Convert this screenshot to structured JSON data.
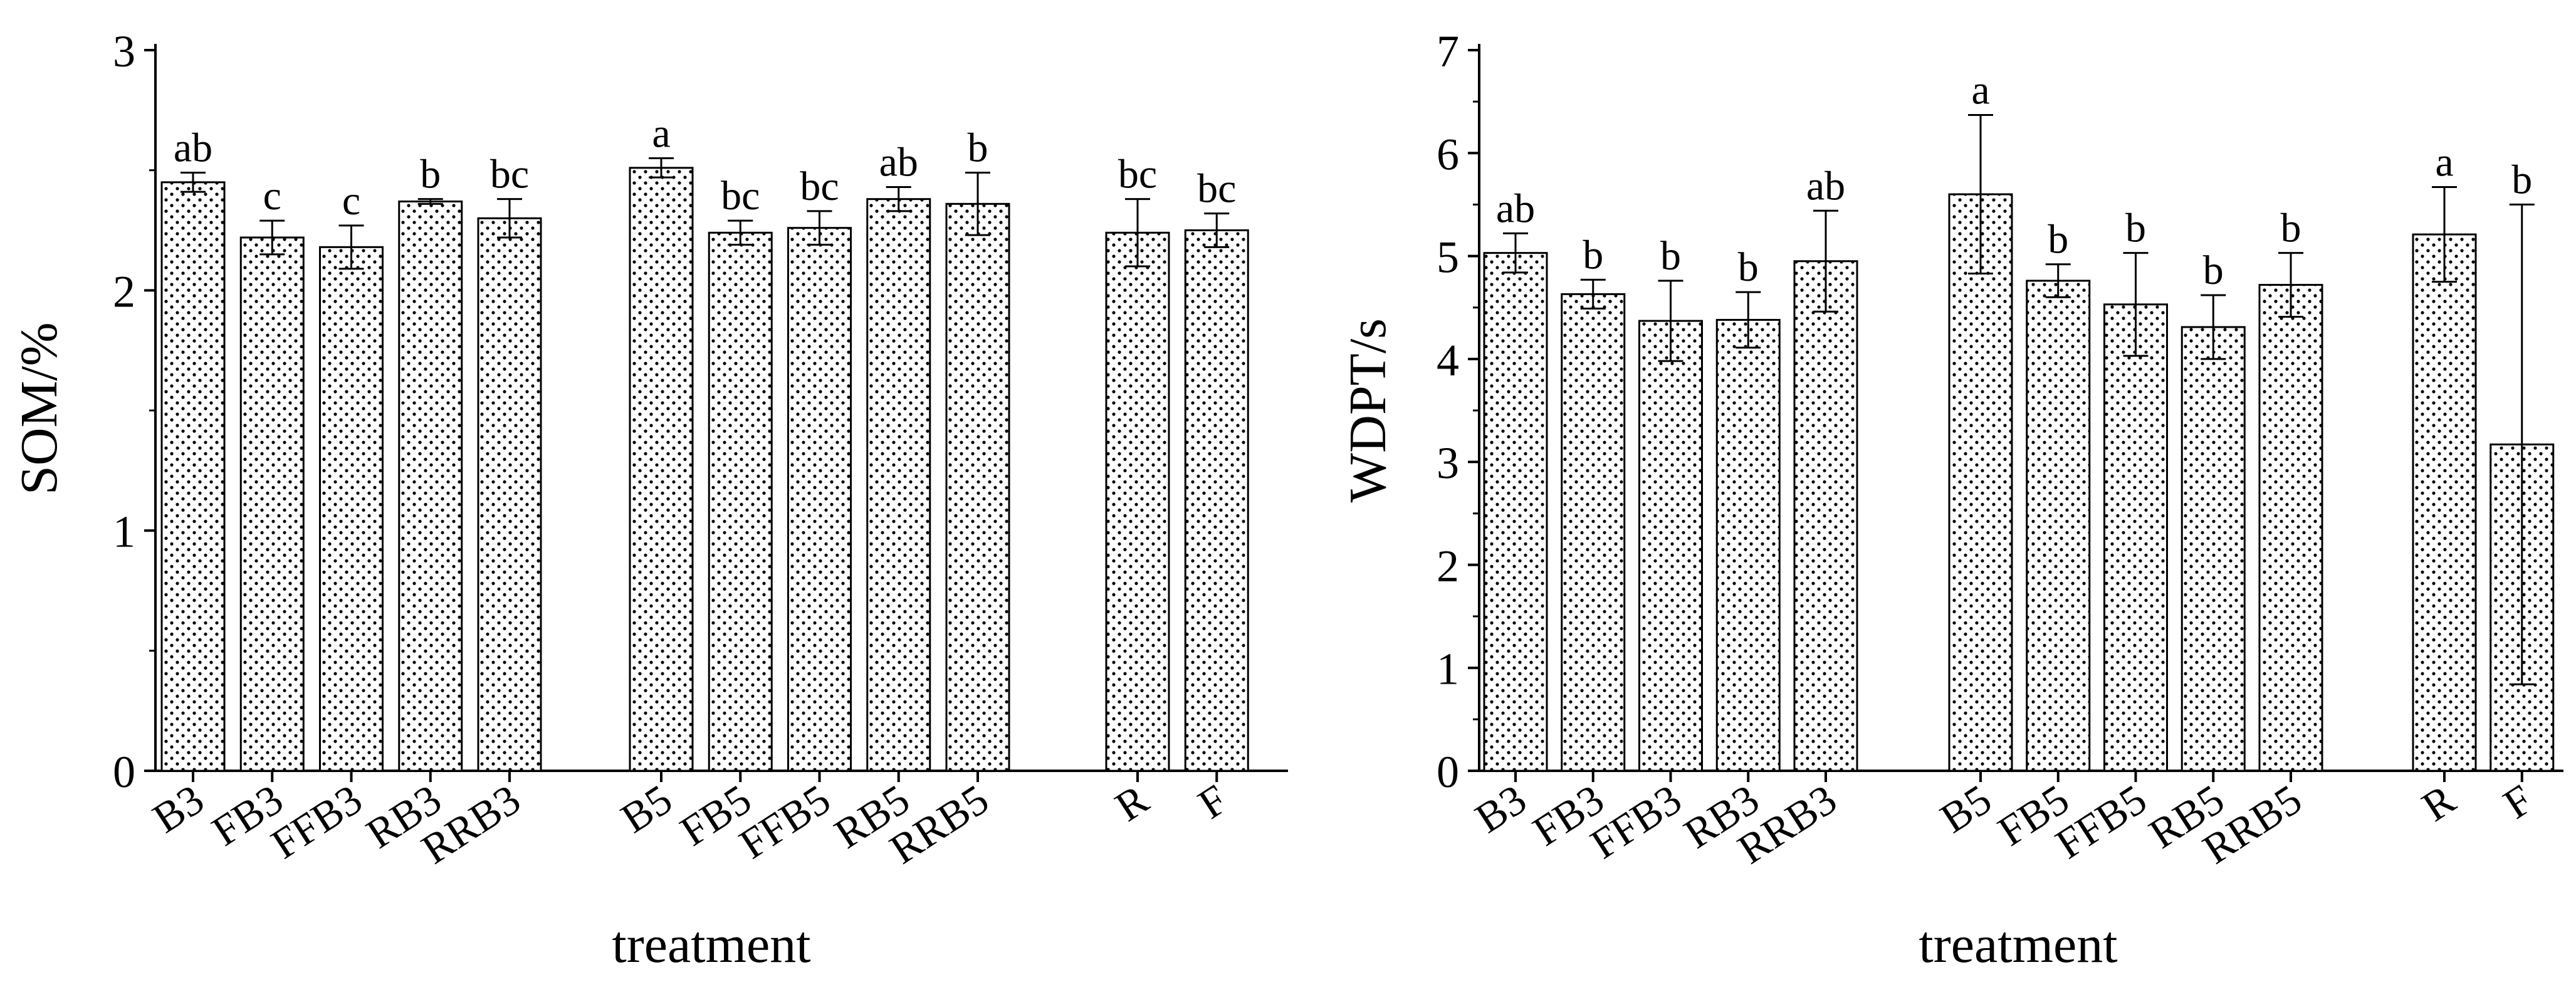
{
  "chart_data": [
    {
      "type": "bar",
      "ylabel": "SOM/%",
      "xlabel": "treatment",
      "ylim": [
        0,
        3
      ],
      "yticks": [
        0,
        1,
        2,
        3
      ],
      "groups": [
        [
          "B3",
          "FB3",
          "FFB3",
          "RB3",
          "RRB3"
        ],
        [
          "B5",
          "FB5",
          "FFB5",
          "RB5",
          "RRB5"
        ],
        [
          "R",
          "F"
        ]
      ],
      "categories": [
        "B3",
        "FB3",
        "FFB3",
        "RB3",
        "RRB3",
        "B5",
        "FB5",
        "FFB5",
        "RB5",
        "RRB5",
        "R",
        "F"
      ],
      "values": [
        2.45,
        2.22,
        2.18,
        2.37,
        2.3,
        2.51,
        2.24,
        2.26,
        2.38,
        2.36,
        2.24,
        2.25
      ],
      "errors": [
        0.04,
        0.07,
        0.09,
        0.01,
        0.08,
        0.04,
        0.05,
        0.07,
        0.05,
        0.13,
        0.14,
        0.07
      ],
      "significance": [
        "ab",
        "c",
        "c",
        "b",
        "bc",
        "a",
        "bc",
        "bc",
        "ab",
        "b",
        "bc",
        "bc"
      ],
      "bar_pattern": "dotted",
      "grid": false
    },
    {
      "type": "bar",
      "ylabel": "WDPT/s",
      "xlabel": "treatment",
      "ylim": [
        0,
        7
      ],
      "yticks": [
        0,
        1,
        2,
        3,
        4,
        5,
        6,
        7
      ],
      "groups": [
        [
          "B3",
          "FB3",
          "FFB3",
          "RB3",
          "RRB3"
        ],
        [
          "B5",
          "FB5",
          "FFB5",
          "RB5",
          "RRB5"
        ],
        [
          "R",
          "F"
        ]
      ],
      "categories": [
        "B3",
        "FB3",
        "FFB3",
        "RB3",
        "RRB3",
        "B5",
        "FB5",
        "FFB5",
        "RB5",
        "RRB5",
        "R",
        "F"
      ],
      "values": [
        5.03,
        4.63,
        4.37,
        4.38,
        4.95,
        5.6,
        4.76,
        4.53,
        4.31,
        4.72,
        5.21,
        3.17
      ],
      "errors": [
        0.19,
        0.14,
        0.39,
        0.27,
        0.49,
        0.77,
        0.16,
        0.5,
        0.31,
        0.31,
        0.46,
        2.33
      ],
      "significance": [
        "ab",
        "b",
        "b",
        "b",
        "ab",
        "a",
        "b",
        "b",
        "b",
        "b",
        "a",
        "b"
      ],
      "bar_pattern": "dotted",
      "grid": false
    }
  ]
}
